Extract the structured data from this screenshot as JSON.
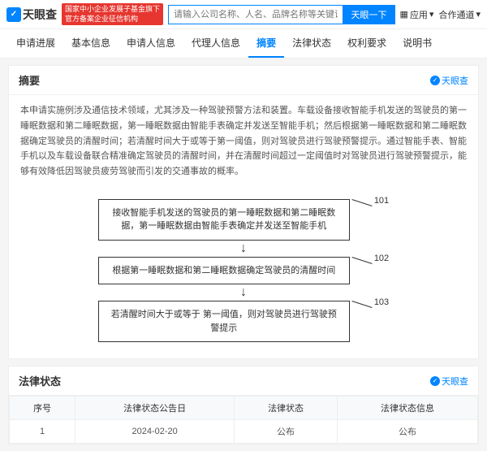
{
  "header": {
    "logo_text": "天眼查",
    "red_badge_line1": "国家中小企业发展子基金旗下",
    "red_badge_line2": "官方备案企业征信机构",
    "search_placeholder": "请输入公司名称、人名、品牌名称等关键词",
    "search_btn": "天眼一下",
    "app_link": "应用",
    "coop_link": "合作通道"
  },
  "tabs": [
    "申请进展",
    "基本信息",
    "申请人信息",
    "代理人信息",
    "摘要",
    "法律状态",
    "权利要求",
    "说明书"
  ],
  "active_tab": 4,
  "watermark": "天眼查",
  "abstract": {
    "title": "摘要",
    "text": "本申请实施例涉及通信技术领域，尤其涉及一种驾驶预警方法和装置。车载设备接收智能手机发送的驾驶员的第一睡眠数据和第二睡眠数据，第一睡眠数据由智能手表确定并发送至智能手机；然后根据第一睡眠数据和第二睡眠数据确定驾驶员的清醒时间；若清醒时间大于或等于第一阈值，则对驾驶员进行驾驶预警提示。通过智能手表、智能手机以及车载设备联合精准确定驾驶员的清醒时间，并在清醒时间超过一定阈值时对驾驶员进行驾驶预警提示，能够有效降低因驾驶员疲劳驾驶而引发的交通事故的概率。"
  },
  "flow": {
    "steps": [
      {
        "num": "101",
        "text": "接收智能手机发送的驾驶员的第一睡眠数据和第二睡眠数据，第一睡眠数据由智能手表确定并发送至智能手机"
      },
      {
        "num": "102",
        "text": "根据第一睡眠数据和第二睡眠数据确定驾驶员的清醒时间"
      },
      {
        "num": "103",
        "text": "若清醒时间大于或等于\n第一阈值，则对驾驶员进行驾驶预警提示"
      }
    ]
  },
  "legal": {
    "title": "法律状态",
    "columns": [
      "序号",
      "法律状态公告日",
      "法律状态",
      "法律状态信息"
    ],
    "rows": [
      [
        "1",
        "2024-02-20",
        "公布",
        "公布"
      ]
    ]
  }
}
